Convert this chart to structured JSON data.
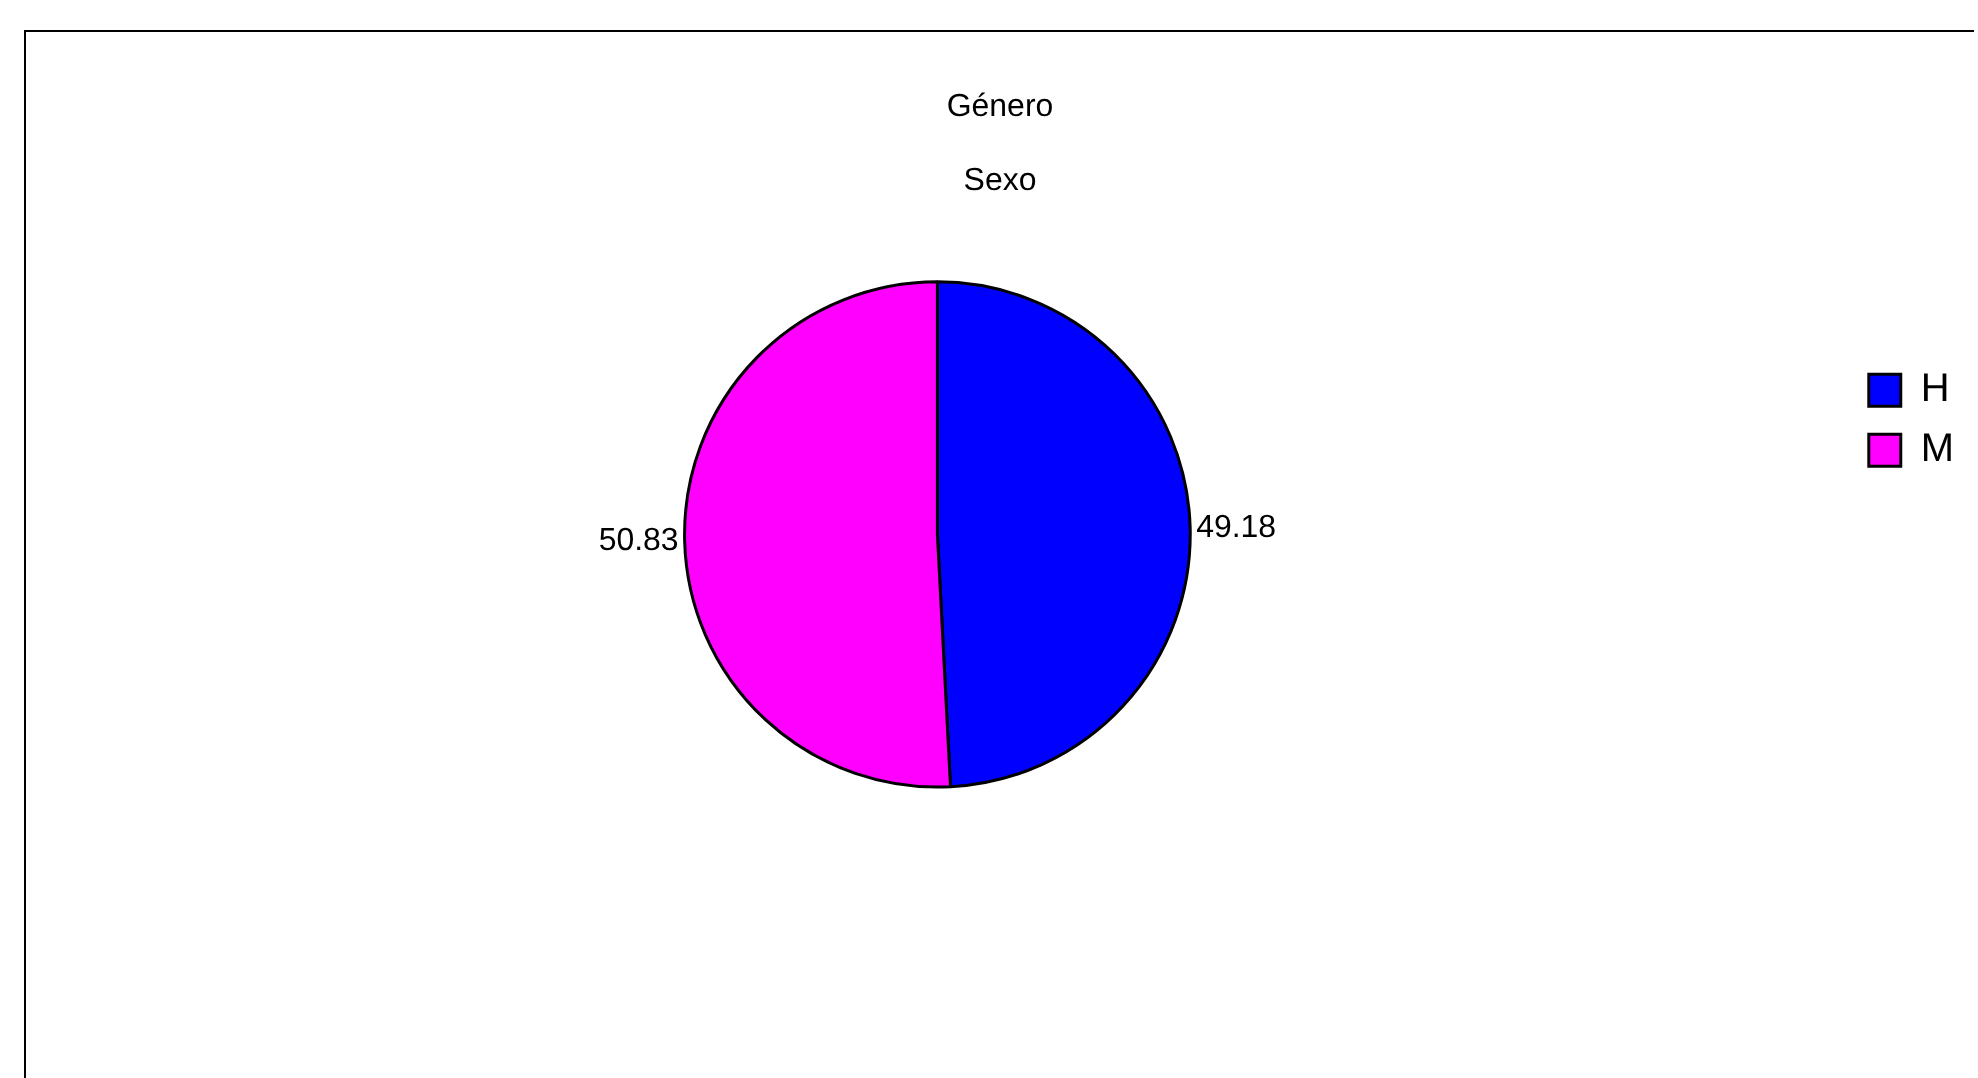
{
  "chart_data": {
    "type": "pie",
    "title": "Género",
    "subtitle": "Sexo",
    "categories": [
      "H",
      "M"
    ],
    "values": [
      49.18,
      50.83
    ],
    "colors": [
      "#0000ff",
      "#ff00ff"
    ],
    "data_labels": true,
    "legend": "right"
  }
}
